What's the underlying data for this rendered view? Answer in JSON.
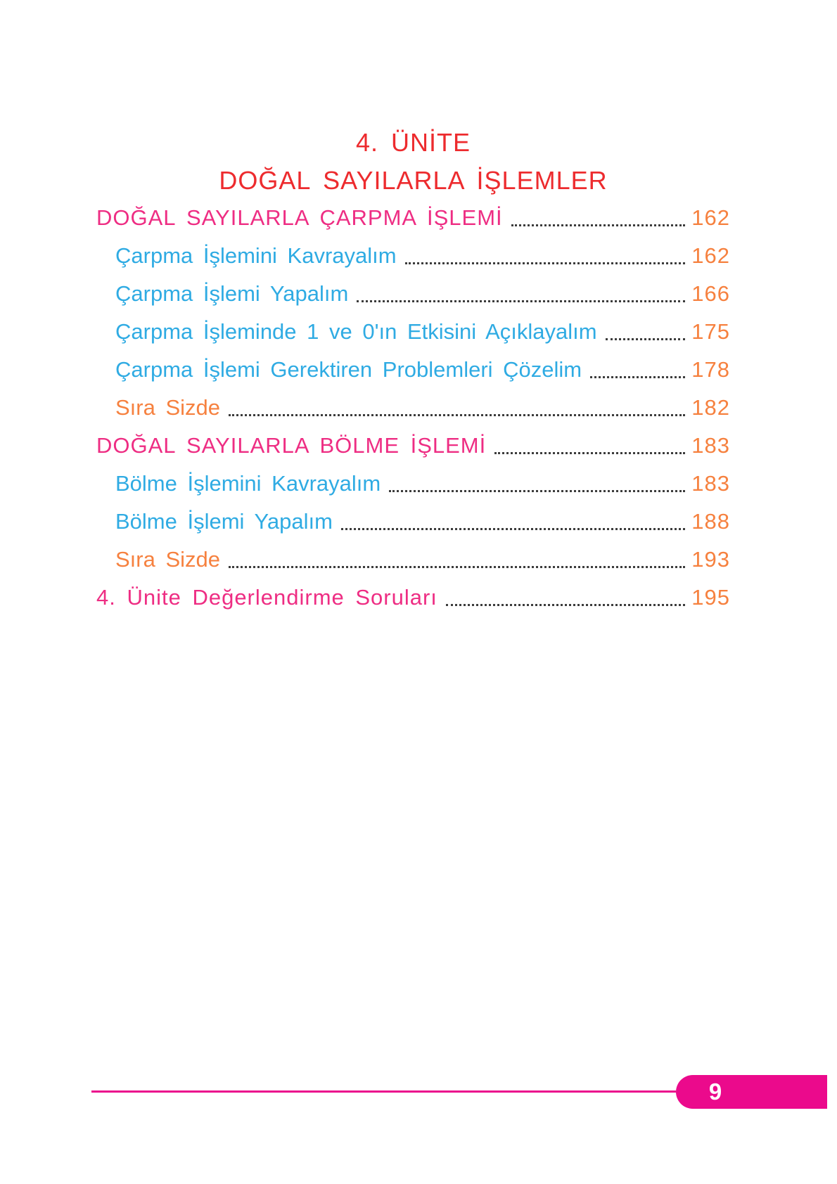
{
  "header": {
    "unit_title": "4. ÜNİTE",
    "unit_subtitle": "DOĞAL SAYILARLA İŞLEMLER"
  },
  "toc": [
    {
      "label": "DOĞAL SAYILARLA ÇARPMA İŞLEMİ",
      "page": "162",
      "level": "top",
      "color": "pink"
    },
    {
      "label": "Çarpma İşlemini Kavrayalım",
      "page": "162",
      "level": "sub",
      "color": "blue"
    },
    {
      "label": "Çarpma İşlemi Yapalım",
      "page": "166",
      "level": "sub",
      "color": "blue"
    },
    {
      "label": "Çarpma İşleminde 1 ve 0'ın Etkisini Açıklayalım",
      "page": "175",
      "level": "sub",
      "color": "blue"
    },
    {
      "label": "Çarpma İşlemi Gerektiren Problemleri Çözelim",
      "page": "178",
      "level": "sub",
      "color": "blue"
    },
    {
      "label": "Sıra Sizde",
      "page": "182",
      "level": "sub",
      "color": "orange"
    },
    {
      "label": "DOĞAL SAYILARLA BÖLME İŞLEMİ",
      "page": "183",
      "level": "top",
      "color": "pink"
    },
    {
      "label": "Bölme İşlemini Kavrayalım",
      "page": "183",
      "level": "sub",
      "color": "blue"
    },
    {
      "label": "Bölme İşlemi Yapalım",
      "page": "188",
      "level": "sub",
      "color": "blue"
    },
    {
      "label": "Sıra Sizde",
      "page": "193",
      "level": "sub",
      "color": "orange"
    },
    {
      "label": "4. Ünite Değerlendirme Soruları",
      "page": "195",
      "level": "top",
      "color": "pink"
    }
  ],
  "footer": {
    "page_number": "9"
  },
  "colors": {
    "red": "#ed2b2e",
    "pink": "#ee2d83",
    "blue": "#2fabe3",
    "orange": "#f6813f",
    "badge": "#eb0a8c",
    "dots": "#3c3c3c"
  }
}
